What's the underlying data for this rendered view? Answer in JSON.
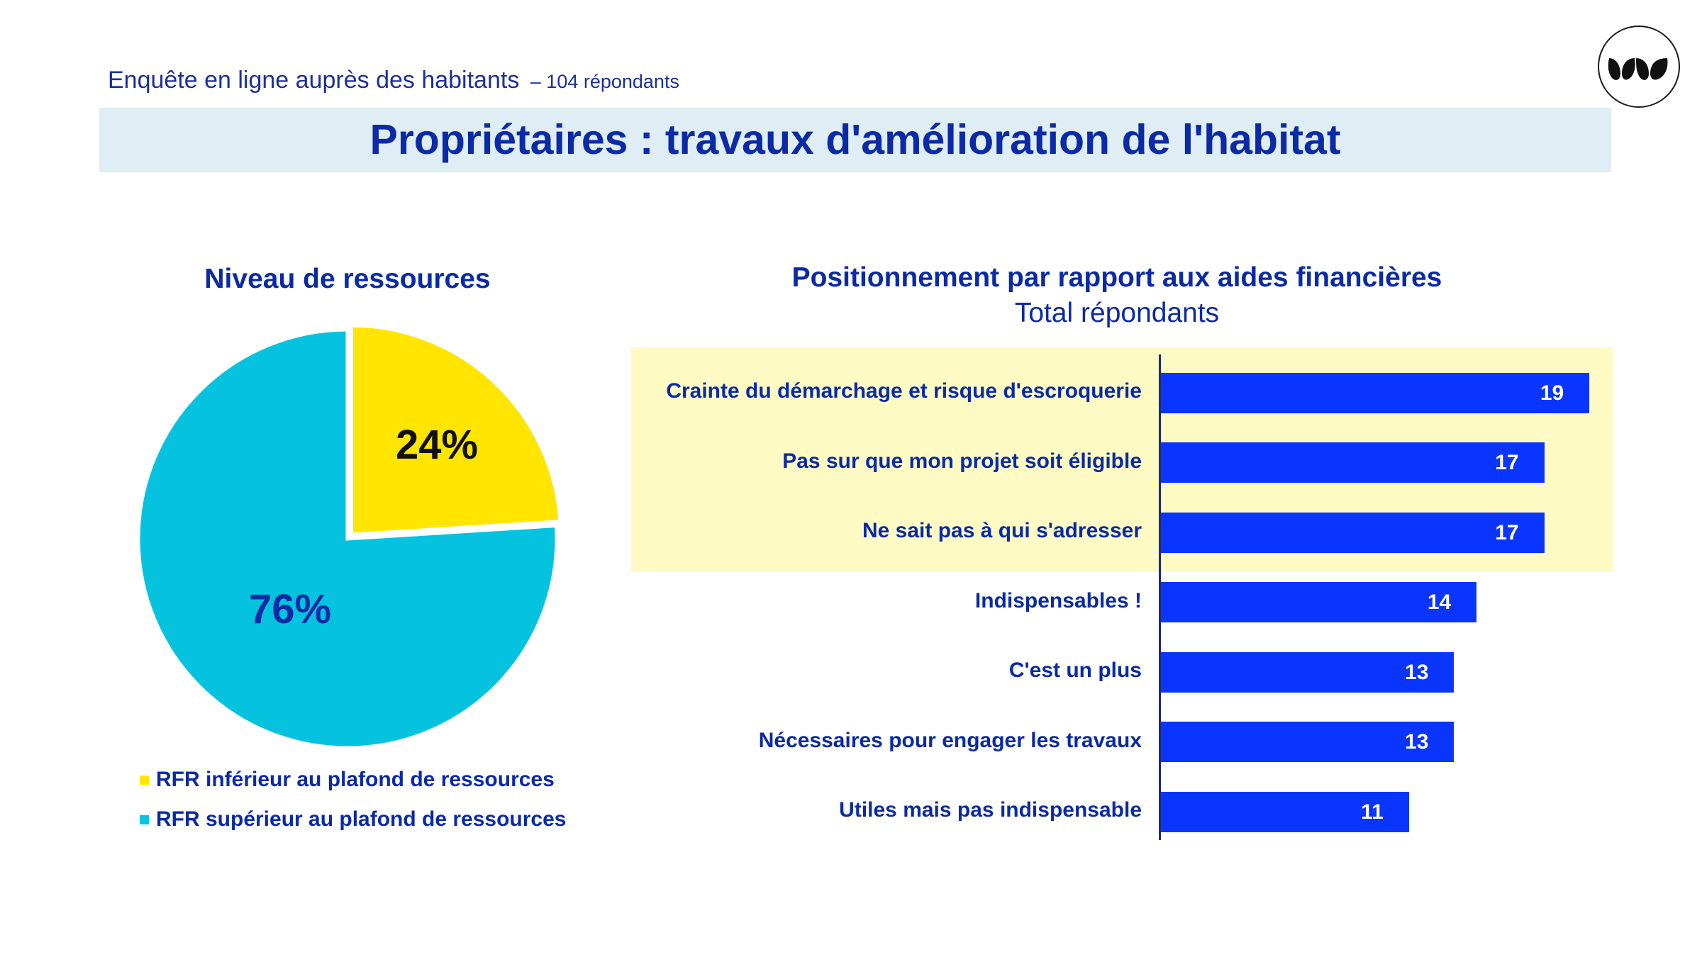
{
  "header": {
    "survey": "Enquête en ligne auprès des habitants",
    "respondents": "– 104 répondants",
    "title": "Propriétaires : travaux d'amélioration de l'habitat"
  },
  "chart_data": [
    {
      "type": "pie",
      "title": "Niveau de ressources",
      "slices": [
        {
          "label": "RFR inférieur au plafond de ressources",
          "value": 24,
          "display": "24%",
          "color": "#ffe500"
        },
        {
          "label": "RFR supérieur au plafond de ressources",
          "value": 76,
          "display": "76%",
          "color": "#05c3df"
        }
      ],
      "legend_position": "bottom"
    },
    {
      "type": "bar",
      "orientation": "horizontal",
      "title": "Positionnement par rapport aux aides financières",
      "subtitle": "Total répondants",
      "categories": [
        "Crainte du démarchage et risque d'escroquerie",
        "Pas sur que mon projet soit éligible",
        "Ne sait pas à qui s'adresser",
        "Indispensables !",
        "C'est un plus",
        "Nécessaires pour engager les travaux",
        "Utiles mais pas indispensable"
      ],
      "values": [
        19,
        17,
        17,
        14,
        13,
        13,
        11
      ],
      "highlighted": [
        0,
        1,
        2
      ],
      "bar_color": "#0a35ff",
      "highlight_color": "#fdfac3",
      "xlim": [
        0,
        20
      ]
    }
  ]
}
